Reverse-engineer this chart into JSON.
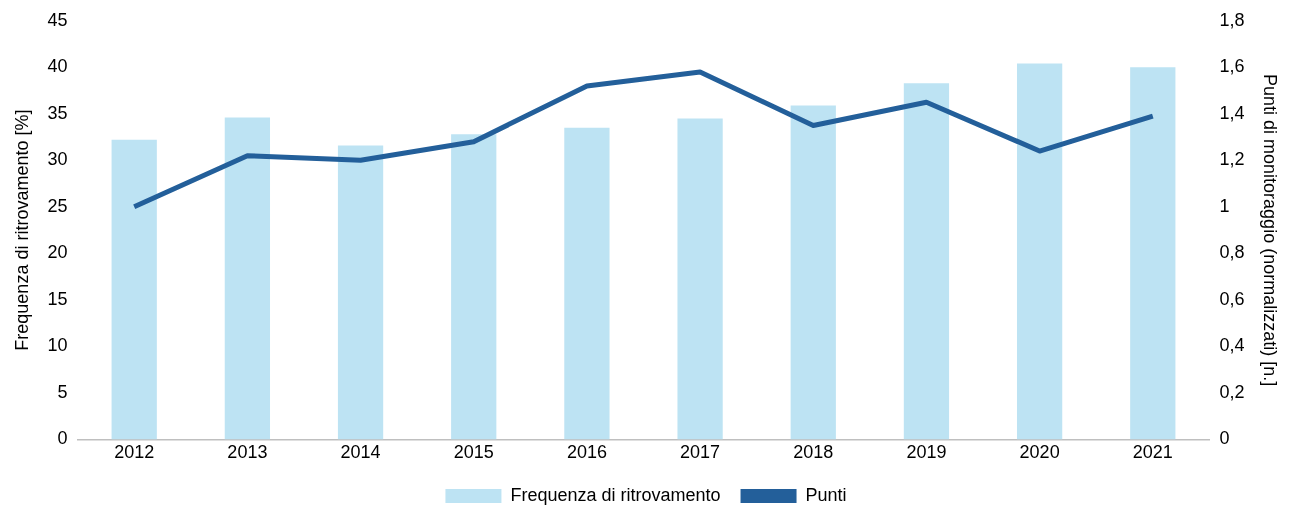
{
  "chart_data": {
    "type": "bar",
    "ylabel": "Frequenza di ritrovamento [%]",
    "y2label": "Punti di monitoraggio (normalizzati) [n.]",
    "categories": [
      "2012",
      "2013",
      "2014",
      "2015",
      "2016",
      "2017",
      "2018",
      "2019",
      "2020",
      "2021"
    ],
    "series": [
      {
        "name": "Frequenza di ritrovamento",
        "color": "#bde3f3",
        "values": [
          32.2,
          34.6,
          31.6,
          32.8,
          33.5,
          34.5,
          35.9,
          38.3,
          40.4,
          40.0
        ]
      },
      {
        "name": "Punti",
        "type": "line",
        "axis": "y2",
        "color": "#235f9a",
        "values": [
          1.0,
          1.22,
          1.2,
          1.28,
          1.52,
          1.58,
          1.35,
          1.45,
          1.24,
          1.39
        ]
      }
    ],
    "ylim": [
      0,
      45
    ],
    "yticks": [
      0,
      5,
      10,
      15,
      20,
      25,
      30,
      35,
      40,
      45
    ],
    "y2lim": [
      0,
      1.8
    ],
    "y2ticks": [
      0,
      {
        "value": 0.2,
        "label": "0,2"
      },
      {
        "value": 0.4,
        "label": "0,4"
      },
      {
        "value": 0.6,
        "label": "0,6"
      },
      {
        "value": 0.8,
        "label": "0,8"
      },
      1,
      {
        "value": 1.2,
        "label": "1,2"
      },
      {
        "value": 1.4,
        "label": "1,4"
      },
      {
        "value": 1.6,
        "label": "1,6"
      },
      {
        "value": 1.8,
        "label": "1,8"
      }
    ],
    "grid": false,
    "legend": "bottom",
    "marker": "none"
  }
}
